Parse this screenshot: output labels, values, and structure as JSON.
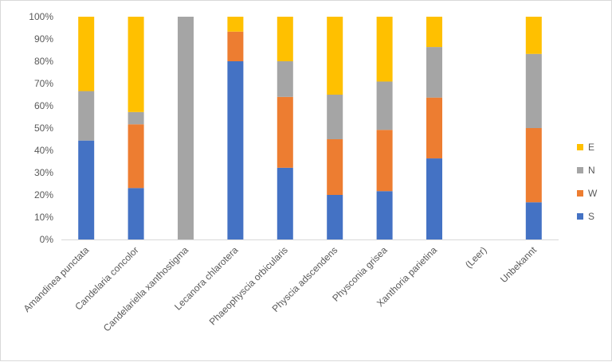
{
  "chart_data": {
    "type": "bar",
    "stacked": true,
    "percent": true,
    "title": "",
    "xlabel": "",
    "ylabel": "",
    "ylim": [
      0,
      100
    ],
    "yticks": [
      "0%",
      "10%",
      "20%",
      "30%",
      "40%",
      "50%",
      "60%",
      "70%",
      "80%",
      "90%",
      "100%"
    ],
    "grid": false,
    "legend_position": "right",
    "categories": [
      "Amandinea punctata",
      "Candelaria concolor",
      "Candelariella xanthostigma",
      "Lecanora chlarotera",
      "Phaeophyscia orbicularis",
      "Physcia adscendens",
      "Physconia grisea",
      "Xanthoria parietina",
      "(Leer)",
      "Unbekannt"
    ],
    "series": [
      {
        "name": "S",
        "color": "#4472C4",
        "values": [
          44.4,
          23.1,
          0,
          80,
          32.2,
          20,
          21.7,
          36.4,
          0,
          16.7
        ]
      },
      {
        "name": "W",
        "color": "#ED7D31",
        "values": [
          0,
          28.6,
          0,
          13.3,
          31.8,
          25,
          27.5,
          27.3,
          0,
          33.3
        ]
      },
      {
        "name": "N",
        "color": "#A5A5A5",
        "values": [
          22.2,
          5.5,
          100,
          0,
          16,
          20,
          21.7,
          22.7,
          0,
          33.3
        ]
      },
      {
        "name": "E",
        "color": "#FFC000",
        "values": [
          33.4,
          42.8,
          0,
          6.7,
          20,
          35,
          29.1,
          13.6,
          0,
          16.7
        ]
      }
    ],
    "legend_order": [
      "E",
      "N",
      "W",
      "S"
    ]
  }
}
